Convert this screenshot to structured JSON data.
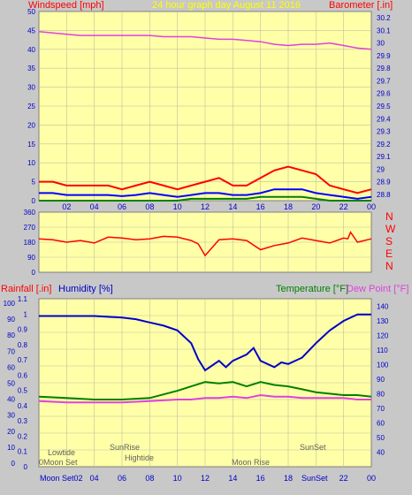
{
  "header": {
    "left_label": "Windspeed [mph]",
    "title": "24 hour graph day   August 11 2016",
    "right_label": "Barometer [.in]"
  },
  "bottom_header": {
    "rainfall_label": "Rainfall [.in]",
    "humidity_label": "Humidity [%]",
    "temperature_label": "Temperature [°F]",
    "dewpoint_label": "Dew Point [°F]"
  },
  "colors": {
    "background": "#c8c8c8",
    "plot_bg": "#ffffa8",
    "grid": "#c0c0a0",
    "pressure": "#e040e0",
    "wind_gust": "#ff0000",
    "wind_avg": "#0000ff",
    "wind_low": "#008000",
    "direction": "#ff0000",
    "humidity": "#0000c8",
    "temperature": "#008000",
    "dewpoint": "#e040e0",
    "label_red": "#ff0000",
    "label_yellow": "#ffff00",
    "label_blue": "#0000c8",
    "label_green": "#008000",
    "label_magenta": "#e040e0",
    "astro_text": "#606060"
  },
  "x_ticks": [
    "02",
    "04",
    "06",
    "08",
    "10",
    "12",
    "14",
    "16",
    "18",
    "20",
    "22",
    "00"
  ],
  "chart_data": [
    {
      "type": "line",
      "panel": "wind-barometer",
      "xlabel": "",
      "ylabel": "Windspeed [mph]",
      "ylim": [
        0,
        50
      ],
      "y_ticks": [
        "0",
        "5",
        "10",
        "15",
        "20",
        "25",
        "30",
        "35",
        "40",
        "45",
        "50"
      ],
      "y2label": "Barometer [.in]",
      "y2lim": [
        28.75,
        30.25
      ],
      "y2_ticks": [
        "28.8",
        "28.9",
        "29",
        "29.1",
        "29.2",
        "29.3",
        "29.4",
        "29.5",
        "29.6",
        "29.7",
        "29.8",
        "29.9",
        "30",
        "30.1",
        "30.2"
      ],
      "grid": true,
      "series": [
        {
          "key": "pressure",
          "axis": "y2",
          "x": [
            0,
            1,
            2,
            3,
            4,
            5,
            6,
            7,
            8,
            9,
            10,
            11,
            12,
            13,
            14,
            15,
            16,
            17,
            18,
            19,
            20,
            21,
            22,
            23,
            24
          ],
          "values": [
            30.09,
            30.08,
            30.07,
            30.06,
            30.06,
            30.06,
            30.06,
            30.06,
            30.06,
            30.05,
            30.05,
            30.05,
            30.04,
            30.03,
            30.03,
            30.02,
            30.01,
            29.99,
            29.98,
            29.99,
            29.99,
            30.0,
            29.98,
            29.96,
            29.95
          ]
        },
        {
          "key": "wind_gust",
          "axis": "y",
          "x": [
            0,
            1,
            2,
            3,
            4,
            5,
            6,
            7,
            8,
            9,
            10,
            11,
            12,
            13,
            14,
            15,
            16,
            17,
            18,
            19,
            20,
            21,
            22,
            23,
            24
          ],
          "values": [
            5,
            5,
            4,
            4,
            4,
            4,
            3,
            4,
            5,
            4,
            3,
            4,
            5,
            6,
            4,
            4,
            6,
            8,
            9,
            8,
            7,
            4,
            3,
            2,
            3
          ]
        },
        {
          "key": "wind_avg",
          "axis": "y",
          "x": [
            0,
            1,
            2,
            3,
            4,
            5,
            6,
            7,
            8,
            9,
            10,
            11,
            12,
            13,
            14,
            15,
            16,
            17,
            18,
            19,
            20,
            21,
            22,
            23,
            24
          ],
          "values": [
            2,
            2,
            1.5,
            1.5,
            1.5,
            1.5,
            1.2,
            1.5,
            2,
            1.5,
            1,
            1.5,
            2,
            2,
            1.5,
            1.5,
            2,
            3,
            3,
            3,
            2,
            1.5,
            1,
            0.5,
            1
          ]
        },
        {
          "key": "wind_low",
          "axis": "y",
          "x": [
            0,
            1,
            2,
            3,
            4,
            5,
            6,
            7,
            8,
            9,
            10,
            11,
            12,
            13,
            14,
            15,
            16,
            17,
            18,
            19,
            20,
            21,
            22,
            23,
            24
          ],
          "values": [
            0,
            0,
            0,
            0,
            0,
            0,
            0,
            0,
            0,
            0,
            0,
            0.5,
            0.5,
            0.5,
            0.5,
            0.5,
            1,
            1,
            1,
            1,
            0.5,
            0,
            0,
            0,
            0
          ]
        }
      ]
    },
    {
      "type": "line",
      "panel": "wind-direction",
      "ylabel": "",
      "ylim": [
        0,
        360
      ],
      "y_ticks": [
        "0",
        "90",
        "180",
        "270",
        "360"
      ],
      "right_labels": [
        "N",
        "W",
        "S",
        "E",
        "N"
      ],
      "grid": true,
      "series": [
        {
          "key": "direction",
          "x": [
            0,
            1,
            2,
            3,
            4,
            5,
            6,
            7,
            8,
            9,
            10,
            11,
            11.5,
            12,
            13,
            14,
            15,
            16,
            17,
            18,
            19,
            20,
            21,
            22,
            22.3,
            22.5,
            23,
            24
          ],
          "values": [
            200,
            195,
            180,
            190,
            175,
            210,
            205,
            195,
            200,
            215,
            210,
            190,
            170,
            100,
            195,
            200,
            190,
            135,
            160,
            175,
            205,
            190,
            175,
            205,
            200,
            240,
            180,
            200
          ]
        }
      ]
    },
    {
      "type": "line",
      "panel": "rain-humidity-temperature",
      "ylabel": "Humidity [%]",
      "ylim": [
        0,
        100
      ],
      "y_ticks": [
        "0",
        "10",
        "20",
        "30",
        "40",
        "50",
        "60",
        "70",
        "80",
        "90",
        "100"
      ],
      "y_rain_ticks": [
        "0",
        "0.1",
        "0.2",
        "0.3",
        "0.4",
        "0.5",
        "0.6",
        "0.7",
        "0.8",
        "0.9",
        "1",
        "1.1"
      ],
      "y2label": "Temperature [°F]",
      "y2lim": [
        30,
        145
      ],
      "y2_ticks": [
        "40",
        "50",
        "60",
        "70",
        "80",
        "90",
        "100",
        "110",
        "120",
        "130",
        "140"
      ],
      "grid": true,
      "series": [
        {
          "key": "humidity",
          "axis": "y",
          "x": [
            0,
            2,
            4,
            6,
            7,
            8,
            9,
            10,
            11,
            11.5,
            12,
            13,
            13.5,
            14,
            15,
            15.5,
            16,
            17,
            17.5,
            18,
            19,
            20,
            21,
            22,
            23,
            24
          ],
          "values": [
            92,
            92,
            92,
            91,
            90,
            88,
            86,
            83,
            75,
            65,
            58,
            64,
            60,
            64,
            68,
            72,
            64,
            60,
            63,
            62,
            66,
            75,
            83,
            89,
            93,
            93
          ]
        },
        {
          "key": "temperature",
          "axis": "y2",
          "x": [
            0,
            2,
            4,
            6,
            8,
            10,
            11,
            12,
            13,
            14,
            15,
            16,
            17,
            18,
            19,
            20,
            21,
            22,
            23,
            24
          ],
          "values": [
            78,
            77,
            76,
            76,
            77,
            82,
            85,
            88,
            87,
            88,
            85,
            88,
            86,
            85,
            83,
            81,
            80,
            79,
            79,
            78
          ]
        },
        {
          "key": "dewpoint",
          "axis": "y2",
          "x": [
            0,
            2,
            4,
            6,
            8,
            10,
            11,
            12,
            13,
            14,
            15,
            16,
            17,
            18,
            19,
            20,
            21,
            22,
            23,
            24
          ],
          "values": [
            75,
            74,
            74,
            74,
            75,
            76,
            76,
            77,
            77,
            78,
            77,
            79,
            78,
            78,
            77,
            77,
            77,
            77,
            76,
            76
          ]
        },
        {
          "key": "rainfall",
          "axis": "y_rain",
          "x": [
            0,
            24
          ],
          "values": [
            0,
            0
          ]
        }
      ],
      "annotations": {
        "lowtide": "Lowtide",
        "moonset_top": "0Moon Set",
        "moonset_bottom": "Moon Set02",
        "sunrise": "SunRise",
        "hightide": "Hightide",
        "moonrise": "Moon Rise",
        "sunset": "SunSet",
        "sunset_axis": "SunSet"
      }
    }
  ]
}
